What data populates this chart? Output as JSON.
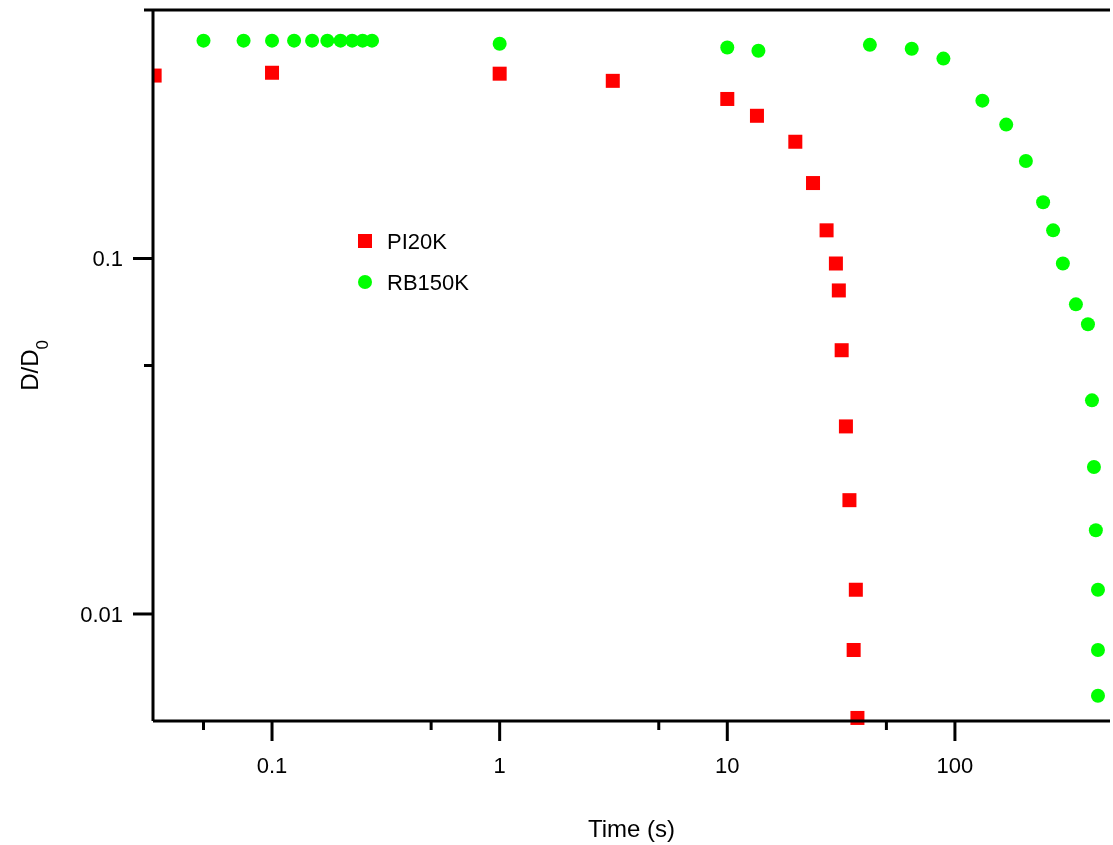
{
  "chart_data": {
    "type": "scatter",
    "xlabel": "Time (s)",
    "ylabel": "D/D$_{0}$",
    "log": "xy",
    "grid": false,
    "legend": "top left",
    "xlim": [
      0.03,
      480
    ],
    "ylim": [
      0.005,
      0.5
    ],
    "xticks": [
      {
        "value": 0.05,
        "label": null
      },
      0.1,
      {
        "value": 0.5,
        "label": null
      },
      1,
      {
        "value": 5,
        "label": null
      },
      10,
      {
        "value": 50,
        "label": null
      },
      100
    ],
    "yticks": [
      0.01,
      {
        "value": 0.05,
        "label": null
      },
      0.1,
      {
        "value": 0.5,
        "label": null
      }
    ],
    "series": [
      {
        "name": "PI20K",
        "color": "#ff0000",
        "marker": "square",
        "x": [
          0.0305,
          0.1,
          1,
          3.14,
          10,
          13.5,
          19.9,
          23.8,
          27.3,
          30.0,
          30.9,
          31.8,
          33.2,
          34.4,
          35.9,
          36.7,
          37.3
        ],
        "values": [
          0.327,
          0.333,
          0.331,
          0.316,
          0.281,
          0.252,
          0.213,
          0.163,
          0.12,
          0.0968,
          0.0813,
          0.0552,
          0.0337,
          0.0209,
          0.00792,
          0.0117,
          0.0051
        ]
      },
      {
        "name": "RB150K",
        "color": "#00ff00",
        "marker": "circle",
        "x": [
          0.05,
          0.075,
          0.1,
          0.125,
          0.15,
          0.175,
          0.2,
          0.225,
          0.25,
          0.275,
          1,
          10,
          13.7,
          42.3,
          64.6,
          89,
          132,
          168,
          205,
          244,
          270,
          298,
          340,
          384,
          400,
          408,
          416,
          425,
          425,
          425
        ],
        "values": [
          0.41,
          0.41,
          0.41,
          0.41,
          0.41,
          0.41,
          0.41,
          0.41,
          0.41,
          0.41,
          0.402,
          0.392,
          0.384,
          0.399,
          0.389,
          0.365,
          0.278,
          0.238,
          0.188,
          0.144,
          0.12,
          0.0968,
          0.0743,
          0.0653,
          0.0399,
          0.0259,
          0.0172,
          0.0117,
          0.00792,
          0.00589
        ]
      }
    ]
  }
}
